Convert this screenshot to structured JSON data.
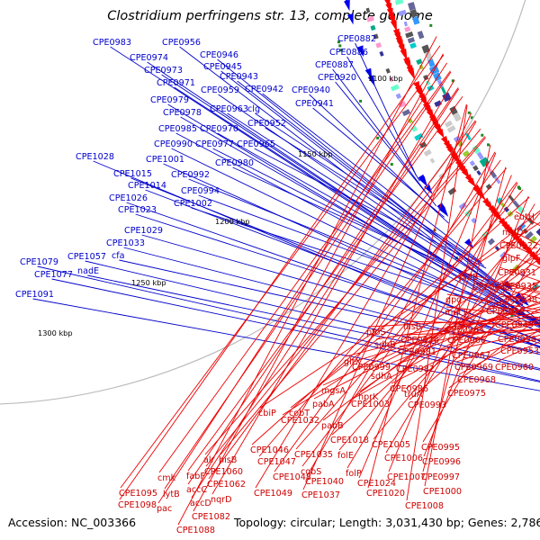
{
  "title": "Clostridium perfringens str. 13, complete genome",
  "accession": "Accession: NC_003366",
  "topology": "Topology: circular; Length: 3,031,430 bp; Genes: 2,786",
  "colors": {
    "forward": "#0000cc",
    "reverse": "#cc0000",
    "backbone": "#777777",
    "gc_marker": "#228822"
  },
  "kbp_marks": [
    {
      "label": "1100 kbp"
    },
    {
      "label": "1150 kbp"
    },
    {
      "label": "1200 kbp"
    },
    {
      "label": "1250 kbp"
    },
    {
      "label": "1300 kbp"
    }
  ],
  "forward_labels": [
    "CPE0983",
    "CPE0956",
    "CPE0974",
    "CPE0946",
    "CPE0973",
    "CPE0945",
    "CPE0943",
    "CPE0971",
    "CPE0959",
    "CPE0942",
    "CPE0979",
    "CPE0963",
    "clg",
    "CPE0978",
    "CPE0985",
    "CPE0970",
    "CPE0952",
    "CPE0990",
    "CPE0977",
    "CPE0965",
    "CPE1001",
    "CPE0980",
    "CPE1028",
    "CPE1015",
    "CPE0992",
    "CPE1014",
    "CPE0994",
    "CPE1026",
    "CPE1002",
    "CPE1023",
    "CPE1029",
    "CPE1033",
    "CPE1057",
    "cfa",
    "CPE1079",
    "nadE",
    "CPE1077",
    "CPE1091",
    "CPE0882",
    "CPE0886",
    "CPE0887",
    "CPE0920",
    "CPE0940",
    "CPE0941"
  ],
  "reverse_labels": [
    "eutH",
    "nrdD",
    "CPE0922",
    "glpF",
    "CPE0931",
    "pldB",
    "CPE0947",
    "CPE0935",
    "CPE0938",
    "gpo",
    "mutT",
    "CPE0948",
    "CPE0949",
    "hisB",
    "CPE0964",
    "CPE0976",
    "CPE0966",
    "CPE0950",
    "CPE0953",
    "pfoS",
    "CPE0981",
    "CPE0967",
    "CPE0969",
    "CPE0960",
    "sdhB",
    "CPE0982",
    "CPE0968",
    "gltX",
    "CPE0999",
    "sdhA",
    "CPE0986",
    "CPE0975",
    "mgsA",
    "CPE1003",
    "pabA",
    "truA",
    "CPE0993",
    "hprK",
    "CPE1032",
    "pabB",
    "CPE1018",
    "CPE1005",
    "CPE0995",
    "cbiP",
    "cobT",
    "folE",
    "CPE1006",
    "CPE0996",
    "CPE1046",
    "CPE1035",
    "cobS",
    "folP",
    "CPE1007",
    "CPE0997",
    "CPE1047",
    "CPE1048",
    "CPE1040",
    "CPE1024",
    "CPE1000",
    "alr",
    "hisB",
    "CPE1060",
    "CPE1062",
    "CPE1049",
    "CPE1037",
    "CPE1020",
    "CPE1008",
    "fabF",
    "accC",
    "accD",
    "nqrD",
    "cmk",
    "lytB",
    "pac",
    "CPE1082",
    "CPE1095",
    "CPE1098",
    "CPE1088"
  ]
}
